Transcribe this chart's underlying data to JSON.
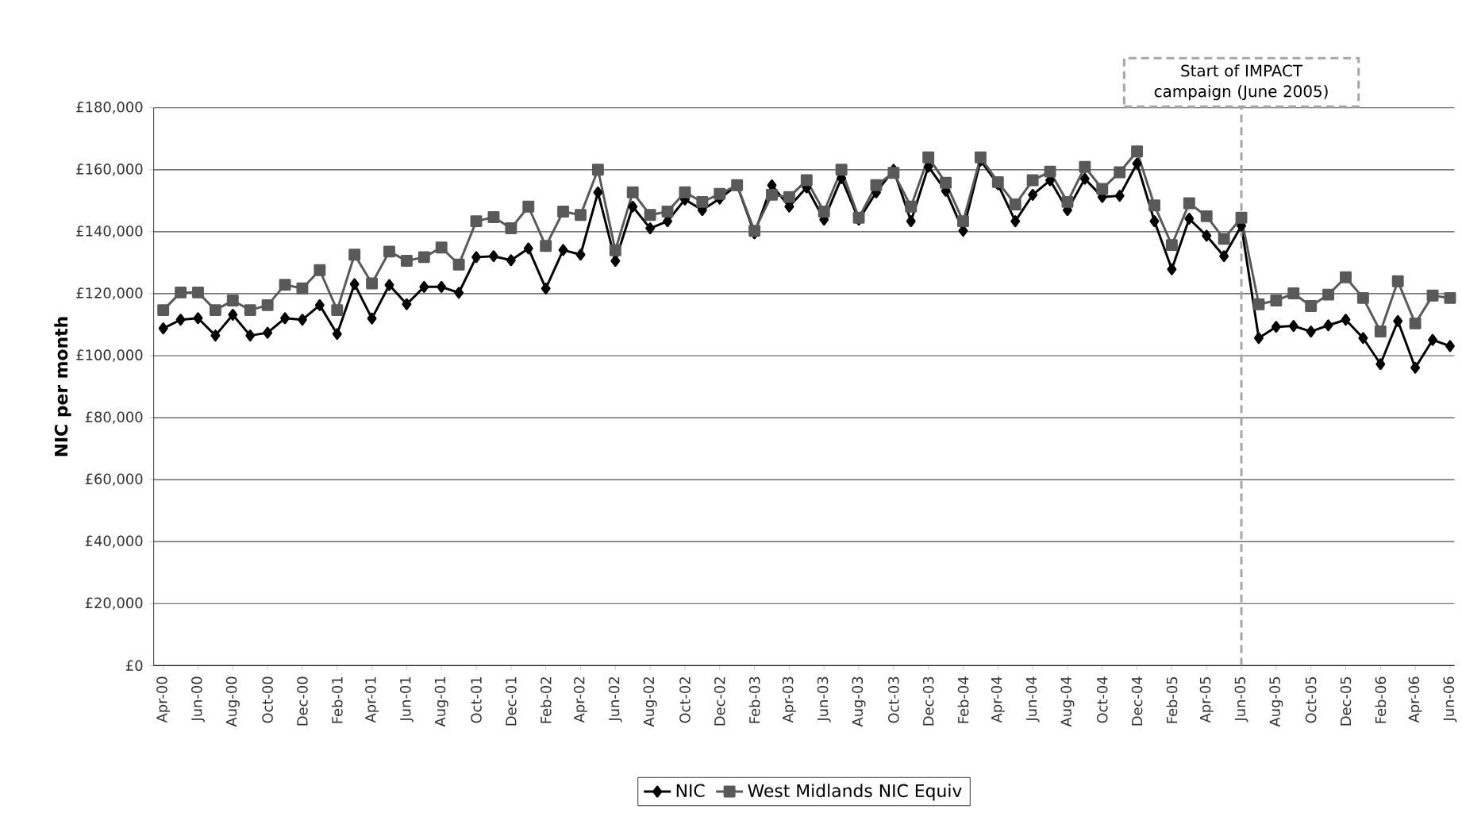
{
  "chart_data": {
    "type": "line",
    "ylabel": "NIC per month",
    "categories": [
      "Apr-00",
      null,
      "Jun-00",
      null,
      "Aug-00",
      null,
      "Oct-00",
      null,
      "Dec-00",
      null,
      "Feb-01",
      null,
      "Apr-01",
      null,
      "Jun-01",
      null,
      "Aug-01",
      null,
      "Oct-01",
      null,
      "Dec-01",
      null,
      "Feb-02",
      null,
      "Apr-02",
      null,
      "Jun-02",
      null,
      "Aug-02",
      null,
      "Oct-02",
      null,
      "Dec-02",
      null,
      "Feb-03",
      null,
      "Apr-03",
      null,
      "Jun-03",
      null,
      "Aug-03",
      null,
      "Oct-03",
      null,
      "Dec-03",
      null,
      "Feb-04",
      null,
      "Apr-04",
      null,
      "Jun-04",
      null,
      "Aug-04",
      null,
      "Oct-04",
      null,
      "Dec-04",
      null,
      "Feb-05",
      null,
      "Apr-05",
      null,
      "Jun-05",
      null,
      "Aug-05",
      null,
      "Oct-05",
      null,
      "Dec-05",
      null,
      "Feb-06",
      null,
      "Apr-06",
      null,
      "Jun-06"
    ],
    "series": [
      {
        "name": "NIC",
        "color": "#000000",
        "marker": "diamond",
        "values": [
          108800,
          111600,
          112100,
          106500,
          113200,
          106500,
          107400,
          112100,
          111600,
          116300,
          107000,
          123100,
          112000,
          122800,
          116600,
          122200,
          122200,
          120300,
          131800,
          132100,
          130800,
          134600,
          121700,
          134100,
          132600,
          152700,
          130600,
          148100,
          141100,
          143400,
          150400,
          147000,
          150700,
          155000,
          139500,
          155000,
          148100,
          154300,
          143900,
          157300,
          143900,
          152700,
          160000,
          143400,
          161000,
          153200,
          140300,
          163000,
          155300,
          143400,
          151900,
          156600,
          147000,
          157100,
          151200,
          151600,
          162000,
          143400,
          127900,
          144200,
          138700,
          132100,
          141900,
          105700,
          109300,
          109600,
          107800,
          109800,
          111600,
          105700,
          97300,
          111200,
          96100,
          105100,
          103100
        ]
      },
      {
        "name": "West Midlands NIC Equiv",
        "color": "#595959",
        "marker": "square",
        "values": [
          114700,
          120400,
          120400,
          114700,
          117800,
          114700,
          116300,
          122900,
          121700,
          127600,
          114700,
          132600,
          123300,
          133600,
          130600,
          131800,
          134900,
          129400,
          143400,
          144700,
          141100,
          148100,
          135400,
          146500,
          145400,
          160000,
          134000,
          152700,
          145400,
          146500,
          152700,
          149600,
          152200,
          155000,
          140300,
          151900,
          151200,
          156600,
          146500,
          160000,
          144500,
          155000,
          159000,
          148100,
          164000,
          155800,
          143400,
          164000,
          156000,
          148800,
          156600,
          159400,
          149600,
          160900,
          153800,
          159200,
          165900,
          148500,
          135700,
          149200,
          145000,
          137700,
          144500,
          116600,
          117800,
          120100,
          116000,
          119700,
          125300,
          118600,
          107800,
          124000,
          110400,
          119400,
          118600
        ]
      }
    ],
    "ylim": [
      0,
      180000
    ],
    "yticks": [
      {
        "value": 0,
        "label": "£0"
      },
      {
        "value": 20000,
        "label": "£20,000"
      },
      {
        "value": 40000,
        "label": "£40,000"
      },
      {
        "value": 60000,
        "label": "£60,000"
      },
      {
        "value": 80000,
        "label": "£80,000"
      },
      {
        "value": 100000,
        "label": "£100,000"
      },
      {
        "value": 120000,
        "label": "£120,000"
      },
      {
        "value": 140000,
        "label": "£140,000"
      },
      {
        "value": 160000,
        "label": "£160,000"
      },
      {
        "value": 180000,
        "label": "£180,000"
      }
    ],
    "ref_lines": [
      {
        "axis": "x",
        "value": "Jun-05",
        "label": "Start of IMPACT campaign (June 2005)",
        "color": "#a6a6a6",
        "line_style": "dashed"
      }
    ],
    "grid": "y",
    "legend": "bottom",
    "line_style": "solid"
  }
}
